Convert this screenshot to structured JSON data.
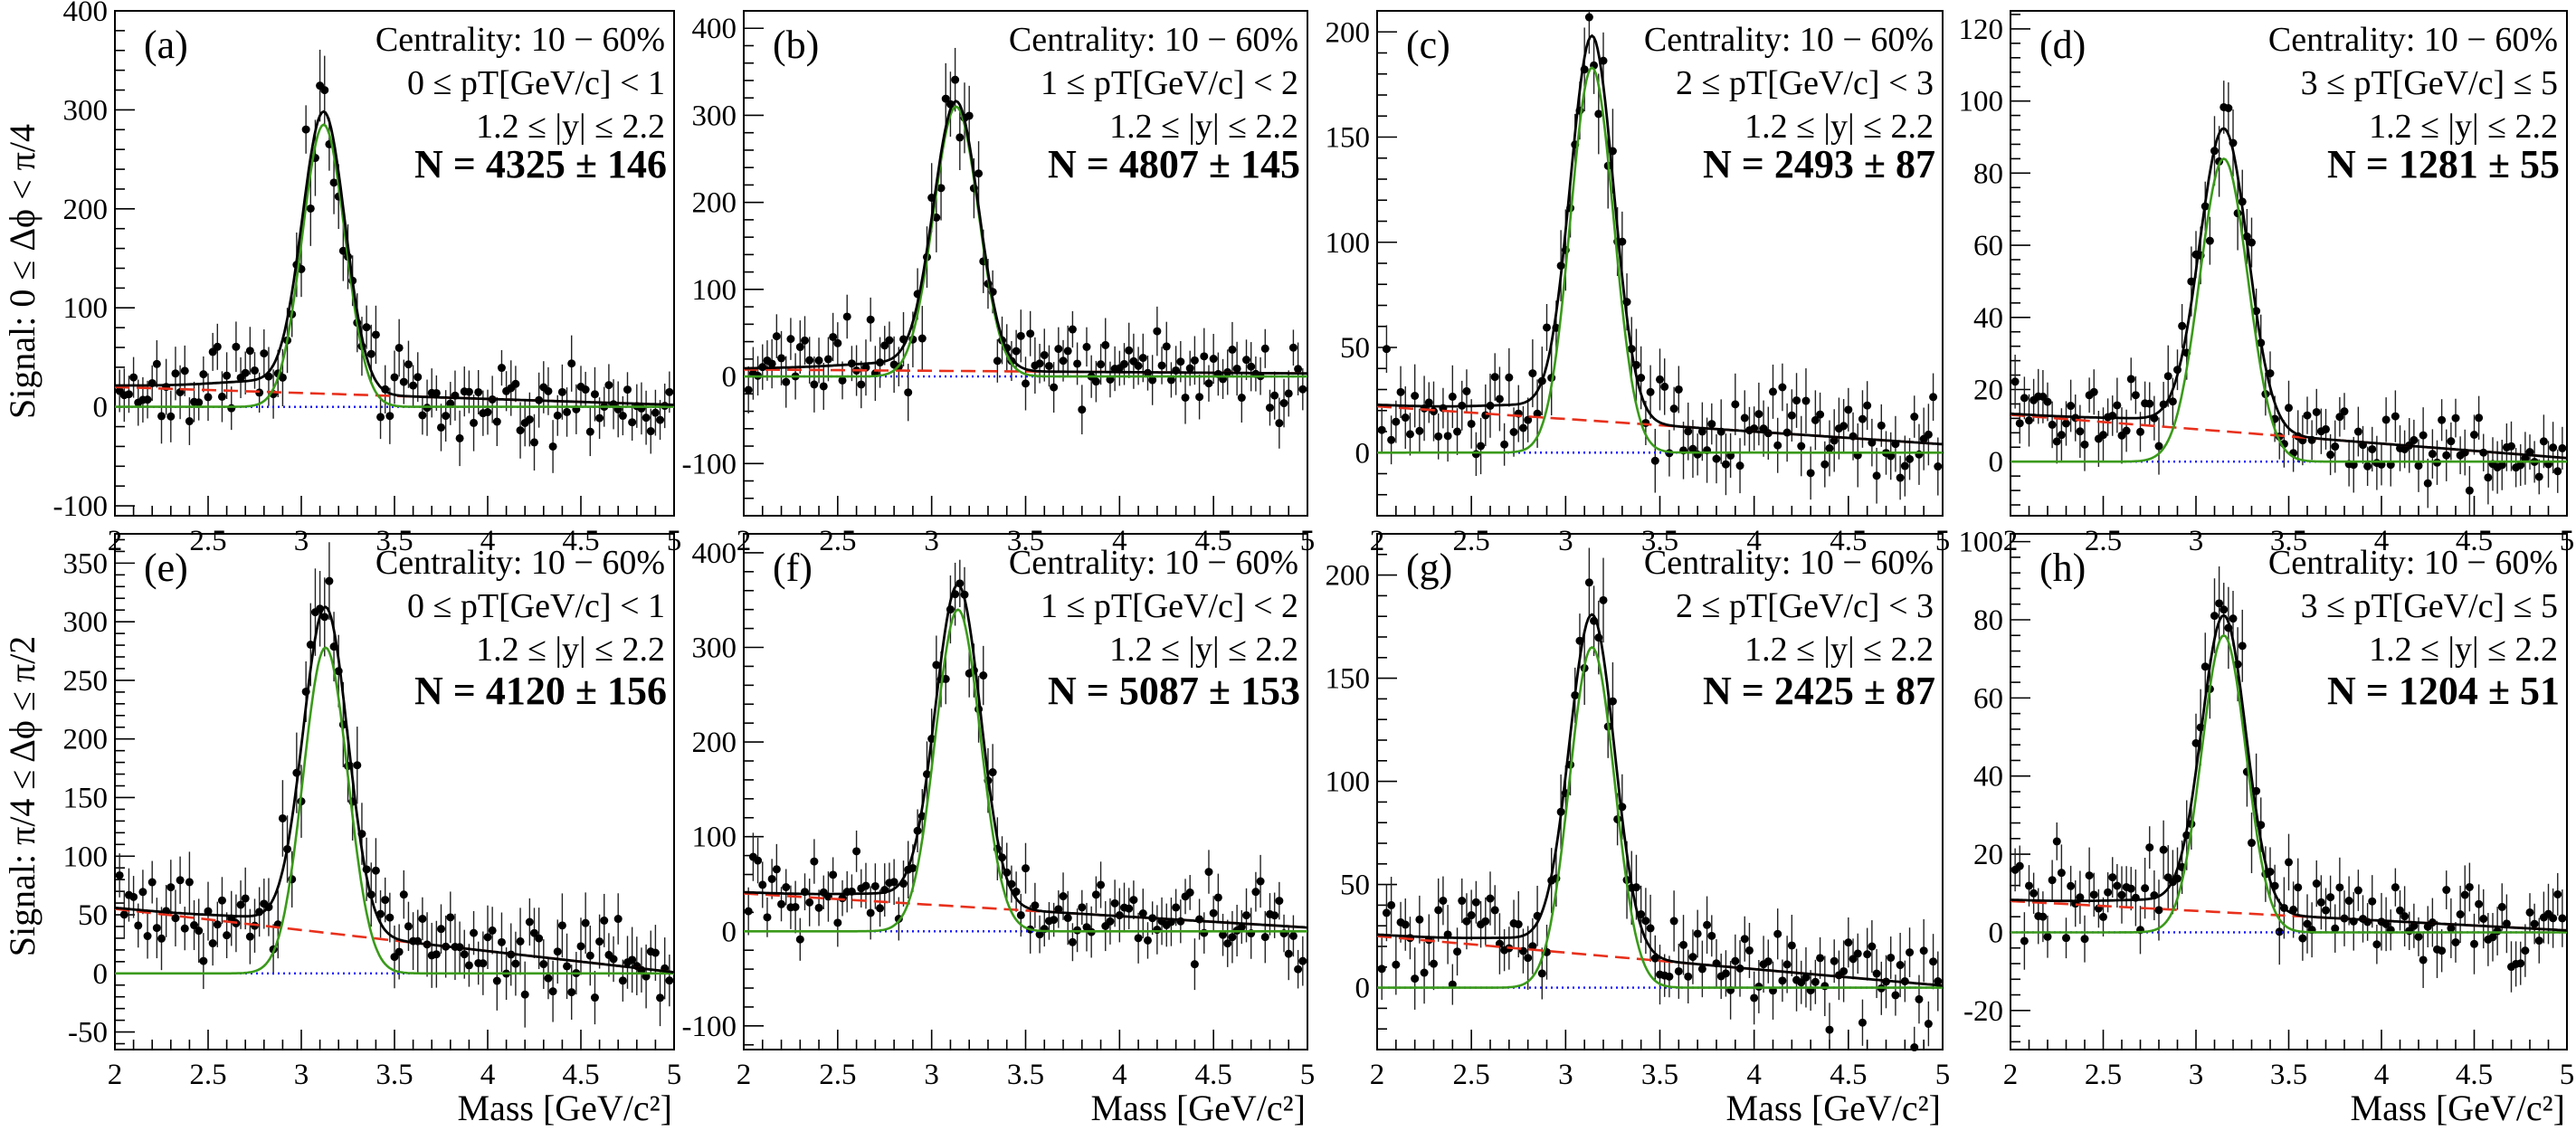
{
  "figure": {
    "y_titles": [
      "Signal: 0 ≤ Δϕ < π/4",
      "Signal: π/4 ≤ Δϕ ≤ π/2"
    ],
    "x_title": "Mass [GeV/c²]"
  },
  "chart_data": [
    {
      "type": "scatter",
      "tag": "(a)",
      "centrality": "Centrality: 10 − 60%",
      "pt_label": "0 ≤ pT[GeV/c] < 1",
      "y_label": "1.2 ≤ |y| ≤ 2.2",
      "yield_label": "N = 4325 ± 146",
      "xlim": [
        2,
        5
      ],
      "ylim": [
        -110,
        400
      ],
      "xticks": [
        2,
        2.5,
        3,
        3.5,
        4,
        4.5,
        5
      ],
      "yticks": [
        -100,
        0,
        100,
        200,
        300,
        400
      ],
      "signal": {
        "amp": 285,
        "mu": 3.12,
        "sigma": 0.115
      },
      "tail": {
        "amp": 40,
        "scale": 0.35
      },
      "background": {
        "at2": 20,
        "slope": -6
      },
      "noise": 22,
      "seed": 11
    },
    {
      "type": "scatter",
      "tag": "(b)",
      "centrality": "Centrality: 10 − 60%",
      "pt_label": "1 ≤ pT[GeV/c] < 2",
      "y_label": "1.2 ≤ |y| ≤ 2.2",
      "yield_label": "N = 4807 ± 145",
      "xlim": [
        2,
        5
      ],
      "ylim": [
        -160,
        420
      ],
      "xticks": [
        2,
        2.5,
        3,
        3.5,
        4,
        4.5,
        5
      ],
      "yticks": [
        -100,
        0,
        100,
        200,
        300,
        400
      ],
      "signal": {
        "amp": 310,
        "mu": 3.13,
        "sigma": 0.12
      },
      "tail": {
        "amp": 35,
        "scale": 0.35
      },
      "background": {
        "at2": 8,
        "slope": -1.5
      },
      "noise": 25,
      "seed": 23
    },
    {
      "type": "scatter",
      "tag": "(c)",
      "centrality": "Centrality: 10 − 60%",
      "pt_label": "2 ≤ pT[GeV/c] < 3",
      "y_label": "1.2 ≤ |y| ≤ 2.2",
      "yield_label": "N = 2493 ± 87",
      "xlim": [
        2,
        5
      ],
      "ylim": [
        -30,
        210
      ],
      "xticks": [
        2,
        2.5,
        3,
        3.5,
        4,
        4.5,
        5
      ],
      "yticks": [
        0,
        50,
        100,
        150,
        200
      ],
      "signal": {
        "amp": 183,
        "mu": 3.14,
        "sigma": 0.115
      },
      "tail": {
        "amp": 20,
        "scale": 0.35
      },
      "background": {
        "at2": 22,
        "slope": -6
      },
      "noise": 12,
      "seed": 37
    },
    {
      "type": "scatter",
      "tag": "(d)",
      "centrality": "Centrality: 10 − 60%",
      "pt_label": "3 ≤ pT[GeV/c] ≤ 5",
      "y_label": "1.2 ≤ |y| ≤ 2.2",
      "yield_label": "N = 1281 ± 55",
      "xlim": [
        2,
        5
      ],
      "ylim": [
        -15,
        125
      ],
      "xticks": [
        2,
        2.5,
        3,
        3.5,
        4,
        4.5,
        5
      ],
      "yticks": [
        0,
        20,
        40,
        60,
        80,
        100,
        120
      ],
      "signal": {
        "amp": 84,
        "mu": 3.15,
        "sigma": 0.13
      },
      "tail": {
        "amp": 8,
        "scale": 0.35
      },
      "background": {
        "at2": 13,
        "slope": -4
      },
      "noise": 6,
      "seed": 41
    },
    {
      "type": "scatter",
      "tag": "(e)",
      "centrality": "Centrality: 10 − 60%",
      "pt_label": "0 ≤ pT[GeV/c] < 1",
      "y_label": "1.2 ≤ |y| ≤ 2.2",
      "yield_label": "N = 4120 ± 156",
      "xlim": [
        2,
        5
      ],
      "ylim": [
        -65,
        375
      ],
      "xticks": [
        2,
        2.5,
        3,
        3.5,
        4,
        4.5,
        5
      ],
      "yticks": [
        -50,
        0,
        50,
        100,
        150,
        200,
        250,
        300,
        350
      ],
      "signal": {
        "amp": 278,
        "mu": 3.13,
        "sigma": 0.12
      },
      "tail": {
        "amp": 25,
        "scale": 0.35
      },
      "background": {
        "at2": 55,
        "slope": -18
      },
      "noise": 22,
      "seed": 53
    },
    {
      "type": "scatter",
      "tag": "(f)",
      "centrality": "Centrality: 10 − 60%",
      "pt_label": "1 ≤ pT[GeV/c] < 2",
      "y_label": "1.2 ≤ |y| ≤ 2.2",
      "yield_label": "N = 5087 ± 153",
      "xlim": [
        2,
        5
      ],
      "ylim": [
        -125,
        420
      ],
      "xticks": [
        2,
        2.5,
        3,
        3.5,
        4,
        4.5,
        5
      ],
      "yticks": [
        -100,
        0,
        100,
        200,
        300,
        400
      ],
      "signal": {
        "amp": 340,
        "mu": 3.14,
        "sigma": 0.12
      },
      "tail": {
        "amp": 35,
        "scale": 0.35
      },
      "background": {
        "at2": 40,
        "slope": -12
      },
      "noise": 22,
      "seed": 67
    },
    {
      "type": "scatter",
      "tag": "(g)",
      "centrality": "Centrality: 10 − 60%",
      "pt_label": "2 ≤ pT[GeV/c] < 3",
      "y_label": "1.2 ≤ |y| ≤ 2.2",
      "yield_label": "N = 2425 ± 87",
      "xlim": [
        2,
        5
      ],
      "ylim": [
        -30,
        220
      ],
      "xticks": [
        2,
        2.5,
        3,
        3.5,
        4,
        4.5,
        5
      ],
      "yticks": [
        0,
        50,
        100,
        150,
        200
      ],
      "signal": {
        "amp": 165,
        "mu": 3.14,
        "sigma": 0.12
      },
      "tail": {
        "amp": 20,
        "scale": 0.35
      },
      "background": {
        "at2": 25,
        "slope": -8
      },
      "noise": 12,
      "seed": 79
    },
    {
      "type": "scatter",
      "tag": "(h)",
      "centrality": "Centrality: 10 − 60%",
      "pt_label": "3 ≤ pT[GeV/c] ≤ 5",
      "y_label": "1.2 ≤ |y| ≤ 2.2",
      "yield_label": "N = 1204 ± 51",
      "xlim": [
        2,
        5
      ],
      "ylim": [
        -30,
        102
      ],
      "xticks": [
        2,
        2.5,
        3,
        3.5,
        4,
        4.5,
        5
      ],
      "yticks": [
        -20,
        0,
        20,
        40,
        60,
        80,
        100
      ],
      "signal": {
        "amp": 76,
        "mu": 3.15,
        "sigma": 0.12
      },
      "tail": {
        "amp": 9,
        "scale": 0.35
      },
      "background": {
        "at2": 8,
        "slope": -2.5
      },
      "noise": 6,
      "seed": 97
    }
  ],
  "colors": {
    "data": "#000000",
    "total_fit": "#000000",
    "signal_fit": "#3a9a1a",
    "background_fit": "#e8301c",
    "baseline": "#1010ff"
  }
}
